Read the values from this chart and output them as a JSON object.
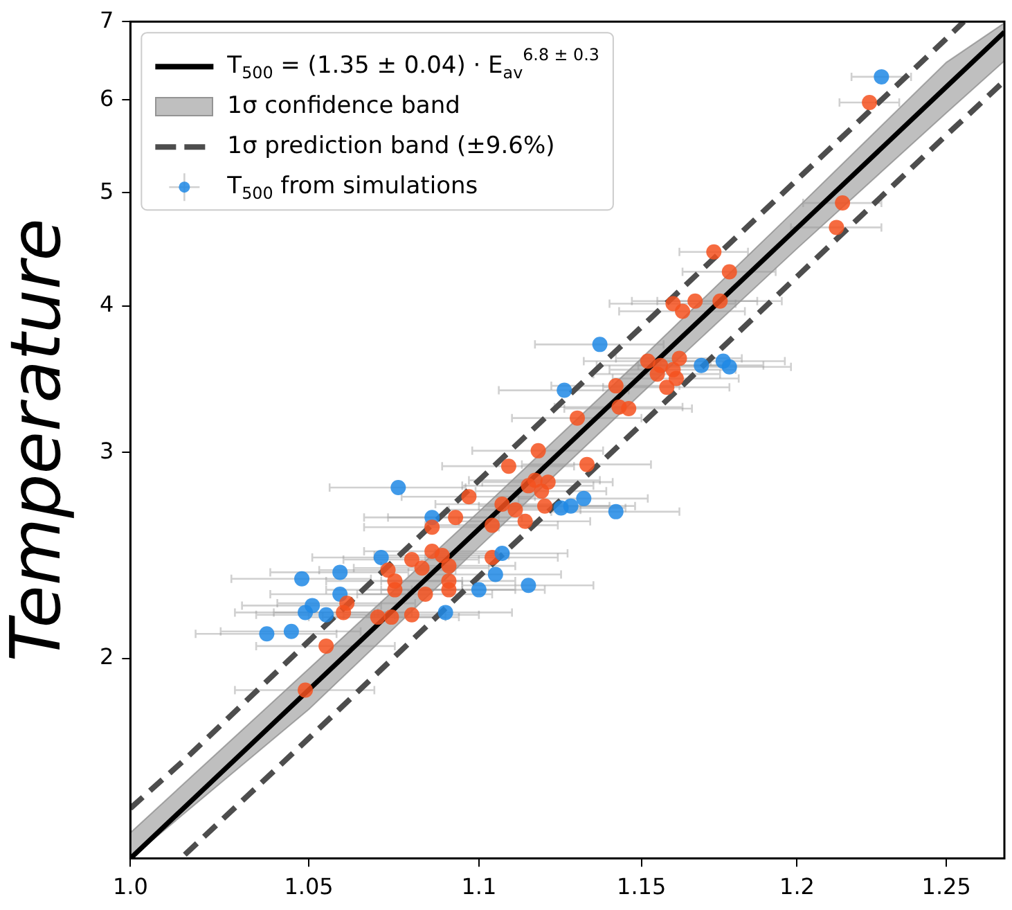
{
  "chart_data": {
    "type": "scatter",
    "ylabel": "Temperature",
    "annotations": [
      "1σ confidence band"
    ],
    "log": "xy",
    "grid": false,
    "legend": "top left",
    "xlim": [
      1.0,
      1.27
    ],
    "xticks": [
      {
        "value": 1.0,
        "label": "1.0"
      },
      1.05,
      1.1,
      1.15,
      1.2,
      1.25
    ],
    "ylim": [
      1.35,
      7
    ],
    "yticks": [
      2,
      3,
      4,
      5,
      6,
      7
    ],
    "series": [
      {
        "name": "T$_{500}$ = (1.35 ± 0.04) · E$_{av}$$^{6.8 ± 0.3}$",
        "type": "line",
        "color": "#000000",
        "x": [
          1.0,
          1.05,
          1.1,
          1.15,
          1.2,
          1.25,
          1.27
        ],
        "values": [
          1.35,
          1.881,
          2.581,
          3.492,
          4.664,
          6.157,
          6.858
        ],
        "lower": [
          1.35,
          1.81,
          2.49,
          3.37,
          4.48,
          5.85,
          6.48
        ],
        "upper": [
          1.42,
          1.96,
          2.67,
          3.61,
          4.85,
          6.46,
          6.98
        ]
      },
      {
        "name": "1σ prediction band (±9.6%)",
        "type": "line",
        "line_style": "dashed",
        "color": "#4d4d4d",
        "x": [
          1.0,
          1.015,
          1.05,
          1.1,
          1.15,
          1.2,
          1.25,
          1.256
        ],
        "values": [
          1.49,
          1.64,
          2.07,
          2.84,
          3.84,
          5.13,
          6.77,
          7.0
        ]
      },
      {
        "type": "line",
        "line_style": "dashed",
        "color": "#4d4d4d",
        "x": [
          1.015,
          1.05,
          1.1,
          1.15,
          1.2,
          1.25,
          1.256,
          1.27
        ],
        "values": [
          1.36,
          1.71,
          2.35,
          3.17,
          4.24,
          5.6,
          5.78,
          6.23
        ]
      },
      {
        "name": "T$_{500}$ from simulations",
        "type": "scatter",
        "x": [
          1.228,
          1.224,
          1.215,
          1.213,
          1.173,
          1.178,
          1.16,
          1.167,
          1.175,
          1.163,
          1.137,
          1.152,
          1.162,
          1.156,
          1.155,
          1.16,
          1.158,
          1.161,
          1.169,
          1.176,
          1.178,
          1.126,
          1.142,
          1.143,
          1.146,
          1.13,
          1.118,
          1.109,
          1.133,
          1.117,
          1.121,
          1.115,
          1.119,
          1.097,
          1.107,
          1.111,
          1.12,
          1.132,
          1.125,
          1.128,
          1.142,
          1.093,
          1.104,
          1.114,
          1.076,
          1.086,
          1.086,
          1.071,
          1.08,
          1.086,
          1.089,
          1.083,
          1.091,
          1.073,
          1.075,
          1.091,
          1.075,
          1.084,
          1.091,
          1.104,
          1.107,
          1.105,
          1.1,
          1.115,
          1.059,
          1.048,
          1.059,
          1.051,
          1.049,
          1.055,
          1.061,
          1.06,
          1.07,
          1.074,
          1.08,
          1.09,
          1.038,
          1.045,
          1.055,
          1.049
        ],
        "values": [
          6.28,
          5.97,
          4.9,
          4.67,
          4.45,
          4.28,
          4.02,
          4.04,
          4.04,
          3.96,
          3.71,
          3.59,
          3.61,
          3.56,
          3.5,
          3.53,
          3.41,
          3.47,
          3.56,
          3.59,
          3.55,
          3.39,
          3.42,
          3.28,
          3.27,
          3.21,
          3.01,
          2.92,
          2.93,
          2.84,
          2.83,
          2.81,
          2.78,
          2.75,
          2.71,
          2.68,
          2.7,
          2.74,
          2.69,
          2.7,
          2.67,
          2.64,
          2.6,
          2.62,
          2.8,
          2.64,
          2.59,
          2.44,
          2.43,
          2.47,
          2.45,
          2.39,
          2.4,
          2.38,
          2.33,
          2.33,
          2.29,
          2.27,
          2.29,
          2.44,
          2.46,
          2.36,
          2.29,
          2.31,
          2.37,
          2.34,
          2.27,
          2.22,
          2.19,
          2.18,
          2.23,
          2.19,
          2.17,
          2.17,
          2.18,
          2.19,
          2.1,
          2.11,
          2.05,
          1.88
        ],
        "xerrors": [
          0.01,
          0.01,
          0.013,
          0.015,
          0.011,
          0.015,
          0.02,
          0.02,
          0.02,
          0.02,
          0.02,
          0.02,
          0.02,
          0.02,
          0.02,
          0.02,
          0.02,
          0.02,
          0.02,
          0.02,
          0.02,
          0.02,
          0.02,
          0.02,
          0.02,
          0.02,
          0.02,
          0.02,
          0.02,
          0.02,
          0.02,
          0.02,
          0.02,
          0.02,
          0.02,
          0.02,
          0.02,
          0.02,
          0.02,
          0.02,
          0.02,
          0.02,
          0.02,
          0.02,
          0.02,
          0.02,
          0.02,
          0.02,
          0.02,
          0.02,
          0.02,
          0.02,
          0.02,
          0.02,
          0.02,
          0.02,
          0.02,
          0.02,
          0.02,
          0.02,
          0.02,
          0.02,
          0.02,
          0.02,
          0.02,
          0.02,
          0.02,
          0.02,
          0.02,
          0.02,
          0.02,
          0.02,
          0.02,
          0.02,
          0.02,
          0.02,
          0.02,
          0.02,
          0.02,
          0.02
        ],
        "colors": [
          "#1e88e5",
          "#f4511e",
          "#f4511e",
          "#f4511e",
          "#f4511e",
          "#f4511e",
          "#f4511e",
          "#f4511e",
          "#f4511e",
          "#f4511e",
          "#1e88e5",
          "#f4511e",
          "#f4511e",
          "#f4511e",
          "#f4511e",
          "#f4511e",
          "#f4511e",
          "#f4511e",
          "#1e88e5",
          "#1e88e5",
          "#1e88e5",
          "#1e88e5",
          "#f4511e",
          "#f4511e",
          "#f4511e",
          "#f4511e",
          "#f4511e",
          "#f4511e",
          "#f4511e",
          "#f4511e",
          "#f4511e",
          "#f4511e",
          "#f4511e",
          "#f4511e",
          "#f4511e",
          "#f4511e",
          "#f4511e",
          "#1e88e5",
          "#1e88e5",
          "#1e88e5",
          "#1e88e5",
          "#f4511e",
          "#f4511e",
          "#f4511e",
          "#1e88e5",
          "#1e88e5",
          "#f4511e",
          "#1e88e5",
          "#f4511e",
          "#f4511e",
          "#f4511e",
          "#f4511e",
          "#f4511e",
          "#f4511e",
          "#f4511e",
          "#f4511e",
          "#f4511e",
          "#f4511e",
          "#f4511e",
          "#f4511e",
          "#1e88e5",
          "#1e88e5",
          "#1e88e5",
          "#1e88e5",
          "#1e88e5",
          "#1e88e5",
          "#1e88e5",
          "#1e88e5",
          "#1e88e5",
          "#1e88e5",
          "#f4511e",
          "#f4511e",
          "#f4511e",
          "#f4511e",
          "#f4511e",
          "#1e88e5",
          "#1e88e5",
          "#1e88e5",
          "#f4511e",
          "#f4511e"
        ]
      }
    ]
  }
}
